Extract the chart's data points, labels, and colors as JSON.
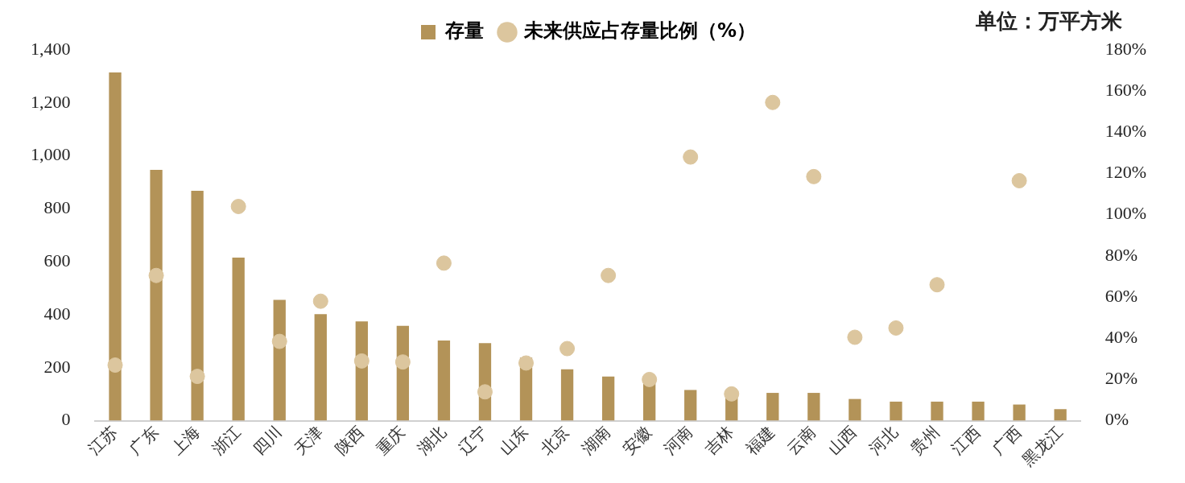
{
  "chart_data": {
    "type": "bar",
    "categories": [
      "江苏",
      "广东",
      "上海",
      "浙江",
      "四川",
      "天津",
      "陕西",
      "重庆",
      "湖北",
      "辽宁",
      "山东",
      "北京",
      "湖南",
      "安徽",
      "河南",
      "吉林",
      "福建",
      "云南",
      "山西",
      "河北",
      "贵州",
      "江西",
      "广西",
      "黑龙江"
    ],
    "series": [
      {
        "name": "存量",
        "color": "#b39358",
        "values": [
          1315,
          947,
          868,
          616,
          456,
          402,
          375,
          358,
          303,
          293,
          238,
          194,
          167,
          150,
          116,
          102,
          105,
          105,
          82,
          72,
          72,
          72,
          61,
          44
        ]
      },
      {
        "name": "未来供应占存量比例（%）",
        "type": "scatter",
        "axis": "y2",
        "color": "#dcc69e",
        "marker": "circle",
        "values": [
          27,
          70.5,
          21.5,
          104,
          38.5,
          58,
          29,
          28.5,
          76.5,
          14,
          28,
          35,
          70.5,
          20,
          128,
          13,
          154.5,
          118.5,
          40.5,
          45,
          66,
          null,
          116.5,
          null
        ]
      }
    ],
    "ylim": [
      0,
      1400
    ],
    "yticks": [
      0,
      {
        "value": 200,
        "label": "200"
      },
      400,
      600,
      800,
      {
        "value": 1000,
        "label": "1,000"
      },
      {
        "value": 1200,
        "label": "1,200"
      },
      {
        "value": 1400,
        "label": "1,400"
      }
    ],
    "y2lim": [
      0,
      180
    ],
    "y2ticks": [
      {
        "value": 0,
        "label": "0%"
      },
      {
        "value": 20,
        "label": "20%"
      },
      {
        "value": 40,
        "label": "40%"
      },
      {
        "value": 60,
        "label": "60%"
      },
      {
        "value": 80,
        "label": "80%"
      },
      {
        "value": 100,
        "label": "100%"
      },
      {
        "value": 120,
        "label": "120%"
      },
      {
        "value": 140,
        "label": "140%"
      },
      {
        "value": 160,
        "label": "160%"
      },
      {
        "value": 180,
        "label": "180%"
      }
    ],
    "grid": false,
    "legend": "top",
    "annotations": [
      "单位：万平方米"
    ]
  }
}
